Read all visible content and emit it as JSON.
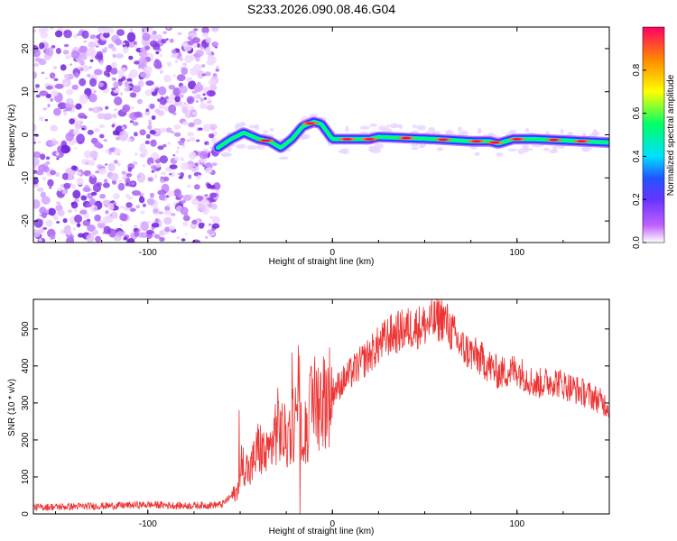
{
  "title": "S233.2026.090.08.46.G04",
  "chart_data": [
    {
      "type": "heatmap",
      "xlabel": "Height of straight line (km)",
      "ylabel": "Frequency (Hz)",
      "xlim": [
        -162,
        150
      ],
      "ylim": [
        -25,
        25
      ],
      "xticks": [
        "-100",
        "0",
        "100"
      ],
      "yticks": [
        "20",
        "10",
        "0",
        "-10",
        "-20"
      ],
      "colorbar": {
        "label": "Normalized spectral amplitude",
        "range": [
          0,
          1
        ],
        "ticks": [
          "0.0",
          "0.2",
          "0.4",
          "0.6",
          "0.8"
        ]
      },
      "noise_region_x": [
        -162,
        -62
      ],
      "ridge": {
        "x": [
          -62,
          -55,
          -48,
          -40,
          -34,
          -28,
          -22,
          -16,
          -10,
          -6,
          0,
          20,
          25,
          55,
          75,
          85,
          90,
          98,
          110,
          150
        ],
        "y": [
          -3,
          -1,
          0.5,
          -1,
          -1.5,
          -3,
          -1,
          2,
          3,
          2.5,
          -1,
          -1,
          -0.5,
          -1,
          -1.5,
          -1.5,
          -2,
          -1,
          -1,
          -1.8
        ]
      }
    },
    {
      "type": "line",
      "xlabel": "Height of straight line (km)",
      "ylabel": "SNR (10 * v/v)",
      "xlim": [
        -162,
        150
      ],
      "ylim": [
        0,
        580
      ],
      "xticks": [
        "-100",
        "0",
        "100"
      ],
      "yticks": [
        "0",
        "100",
        "200",
        "300",
        "400",
        "500"
      ],
      "series": [
        {
          "name": "SNR",
          "color": "#ee3333",
          "envelope_x": [
            -162,
            -140,
            -120,
            -100,
            -80,
            -60,
            -52,
            -48,
            -45,
            -40,
            -35,
            -30,
            -25,
            -20,
            -15,
            -10,
            -5,
            0,
            10,
            20,
            30,
            40,
            50,
            60,
            65,
            70,
            80,
            90,
            100,
            110,
            120,
            130,
            140,
            150
          ],
          "envelope_y": [
            18,
            20,
            22,
            25,
            22,
            25,
            60,
            140,
            110,
            180,
            150,
            240,
            200,
            260,
            230,
            300,
            310,
            330,
            380,
            430,
            480,
            500,
            510,
            530,
            490,
            450,
            420,
            380,
            390,
            350,
            360,
            340,
            320,
            290
          ]
        }
      ]
    }
  ]
}
